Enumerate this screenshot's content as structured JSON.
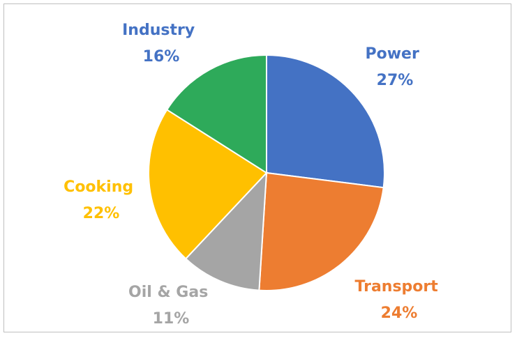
{
  "chart_data": {
    "type": "pie",
    "categories": [
      "Power",
      "Transport",
      "Oil & Gas",
      "Cooking",
      "Industry"
    ],
    "values": [
      27,
      24,
      11,
      22,
      16
    ],
    "percent_labels": [
      "27%",
      "24%",
      "11%",
      "22%",
      "16%"
    ],
    "colors": [
      "#4472C4",
      "#ED7D31",
      "#A5A5A5",
      "#FFC000",
      "#2EAA5A"
    ],
    "label_colors": [
      "#4472C4",
      "#ED7D31",
      "#A5A5A5",
      "#FFC000",
      "#4472C4"
    ],
    "title": "",
    "legend": "none"
  }
}
